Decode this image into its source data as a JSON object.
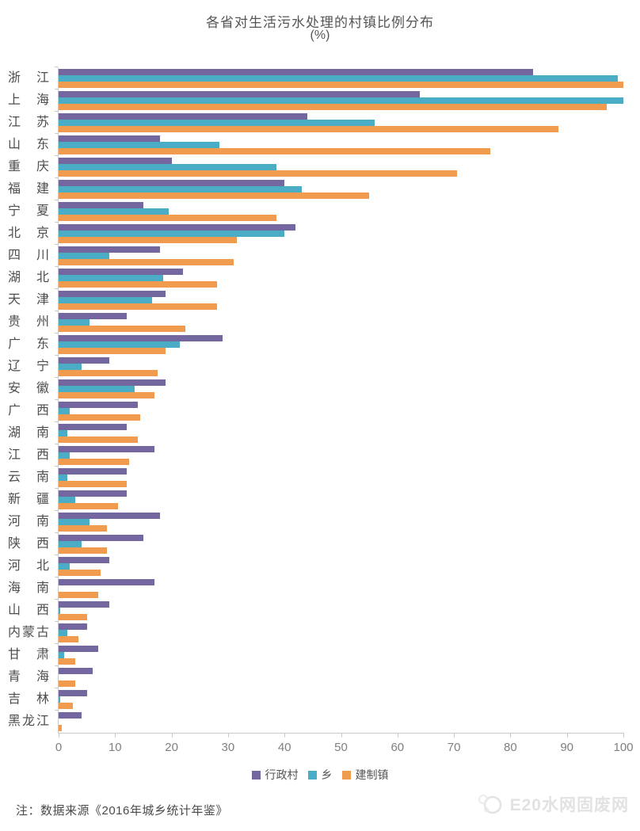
{
  "title": {
    "line1": "各省对生活污水处理的村镇比例分布",
    "line2": "(%)"
  },
  "chart_data": {
    "type": "bar",
    "orientation": "horizontal",
    "title": "各省对生活污水处理的村镇比例分布 (%)",
    "xlabel": "",
    "ylabel": "",
    "xlim": [
      0,
      100
    ],
    "x_ticks": [
      0,
      10,
      20,
      30,
      40,
      50,
      60,
      70,
      80,
      90,
      100
    ],
    "grid": false,
    "legend_position": "bottom",
    "categories": [
      "浙江",
      "上海",
      "江苏",
      "山东",
      "重庆",
      "福建",
      "宁夏",
      "北京",
      "四川",
      "湖北",
      "天津",
      "贵州",
      "广东",
      "辽宁",
      "安徽",
      "广西",
      "湖南",
      "江西",
      "云南",
      "新疆",
      "河南",
      "陕西",
      "河北",
      "海南",
      "山西",
      "内蒙古",
      "甘肃",
      "青海",
      "吉林",
      "黑龙江"
    ],
    "series": [
      {
        "name": "行政村",
        "color": "#74669F",
        "values": [
          84,
          64,
          44,
          18,
          20,
          40,
          15,
          42,
          18,
          22,
          19,
          12,
          29,
          9,
          19,
          14,
          12,
          17,
          12,
          12,
          18,
          15,
          9,
          17,
          9,
          5,
          7,
          6,
          5,
          4
        ]
      },
      {
        "name": "乡",
        "color": "#4AACC5",
        "values": [
          99,
          100,
          56,
          28.5,
          38.5,
          43,
          19.5,
          40,
          9,
          18.5,
          16.5,
          5.5,
          21.5,
          4,
          13.5,
          2,
          1.5,
          2,
          1.5,
          3,
          5.5,
          4,
          2,
          0,
          0.3,
          1.5,
          1,
          0,
          0.3,
          0
        ]
      },
      {
        "name": "建制镇",
        "color": "#F09B4D",
        "values": [
          100,
          97,
          88.5,
          76.5,
          70.5,
          55,
          38.5,
          31.5,
          31,
          28,
          28,
          22.5,
          19,
          17.5,
          17,
          14.5,
          14,
          12.5,
          12,
          10.5,
          8.5,
          8.5,
          7.5,
          7,
          5,
          3.5,
          3,
          3,
          2.5,
          0.5
        ]
      }
    ]
  },
  "note": "注：数据来源《2016年城乡统计年鉴》",
  "watermark": "E20水网固废网"
}
